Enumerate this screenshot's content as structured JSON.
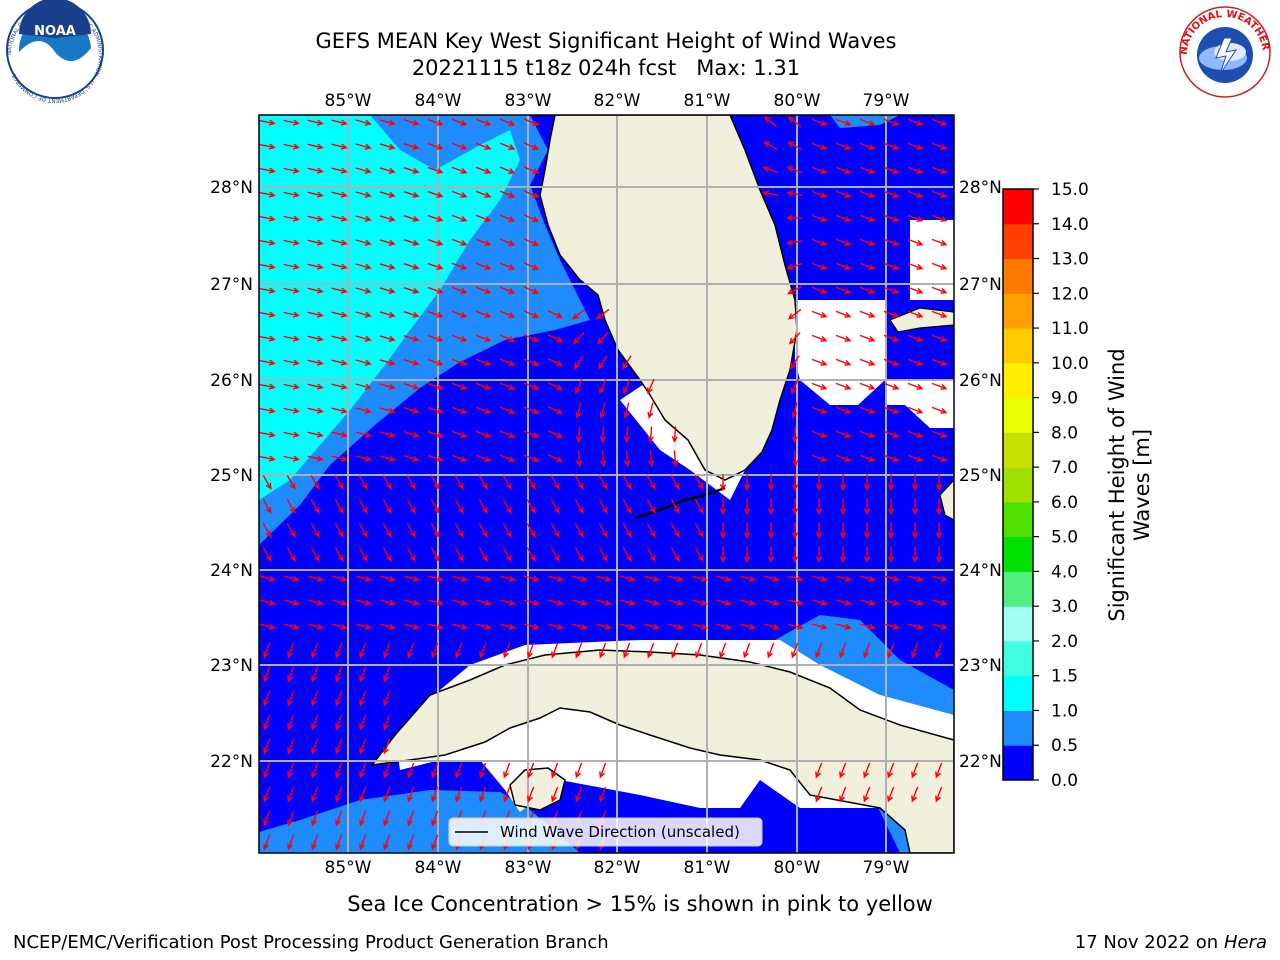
{
  "title_line1": "GEFS MEAN Key West Significant Height of Wind Waves",
  "title_line2": "20221115 t18z 024h fcst   Max: 1.31",
  "lon_labels": [
    "85°W",
    "84°W",
    "83°W",
    "82°W",
    "81°W",
    "80°W",
    "79°W"
  ],
  "lat_labels": [
    "28°N",
    "27°N",
    "26°N",
    "25°N",
    "24°N",
    "23°N",
    "22°N"
  ],
  "legend_label": "Wind Wave Direction (unscaled)",
  "colorbar": {
    "title_line1": "Significant Height of Wind",
    "title_line2": "Waves [m]",
    "ticks": [
      "0.0",
      "0.5",
      "1.0",
      "1.5",
      "2.0",
      "3.0",
      "4.0",
      "5.0",
      "6.0",
      "7.0",
      "8.0",
      "9.0",
      "10.0",
      "11.0",
      "12.0",
      "13.0",
      "14.0",
      "15.0"
    ],
    "colors": [
      "#0000ff",
      "#1e8cff",
      "#00ffff",
      "#40ffe0",
      "#a0fff0",
      "#50f080",
      "#00e000",
      "#50e000",
      "#a0e000",
      "#c8e000",
      "#e8ff00",
      "#ffee00",
      "#ffcc00",
      "#ffa000",
      "#ff7800",
      "#ff4000",
      "#ff0000"
    ]
  },
  "ice_note": "Sea Ice Concentration > 15% is shown in pink to yellow",
  "footer_left": "NCEP/EMC/Verification Post Processing Product Generation Branch",
  "footer_date": "17 Nov 2022 on",
  "footer_host": "Hera",
  "logo_left": {
    "label": "NOAA",
    "ring_text": "NATIONAL OCEANIC AND ATMOSPHERIC ADMINISTRATION · U.S. DEPARTMENT OF COMMERCE"
  },
  "logo_right": {
    "ring_text": "NATIONAL WEATHER SERVICE"
  },
  "colors": {
    "land": "#efefdc",
    "arrow": "#ff0000",
    "grid": "#b0b0b0"
  }
}
